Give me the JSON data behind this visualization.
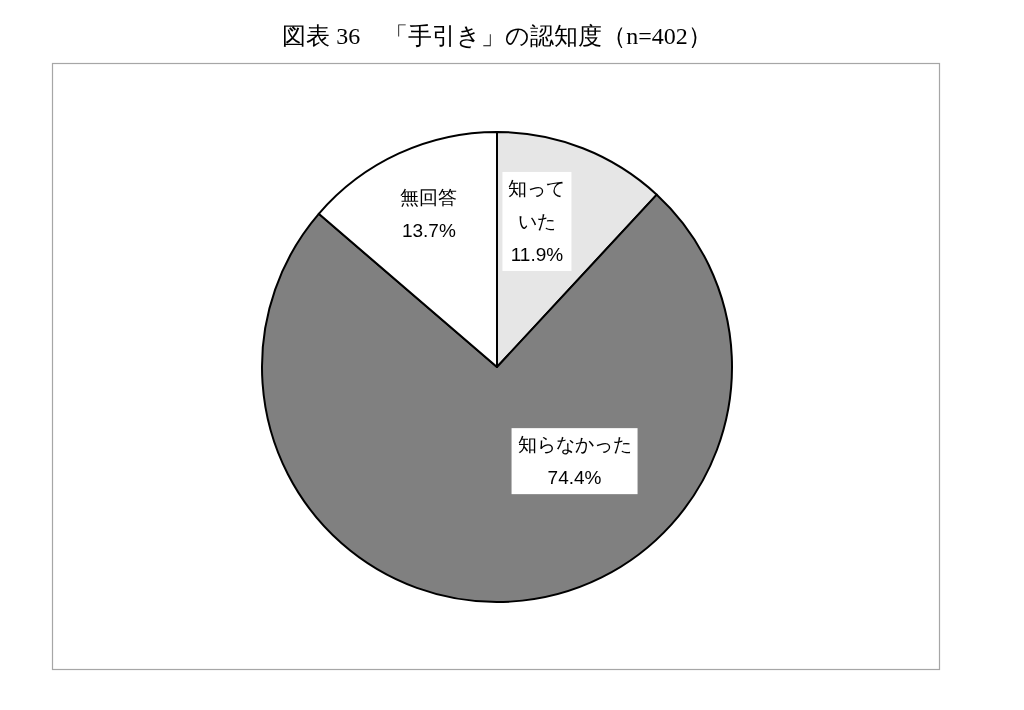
{
  "chart_data": {
    "type": "pie",
    "title": "図表 36　「手引き」の認知度（n=402）",
    "categories": [
      "知っていた",
      "知らなかった",
      "無回答"
    ],
    "values": [
      11.9,
      74.4,
      13.7
    ],
    "colors": [
      "#e6e6e6",
      "#808080",
      "#ffffff"
    ],
    "value_labels": [
      "11.9%",
      "74.4%",
      "13.7%"
    ],
    "legend": false
  }
}
